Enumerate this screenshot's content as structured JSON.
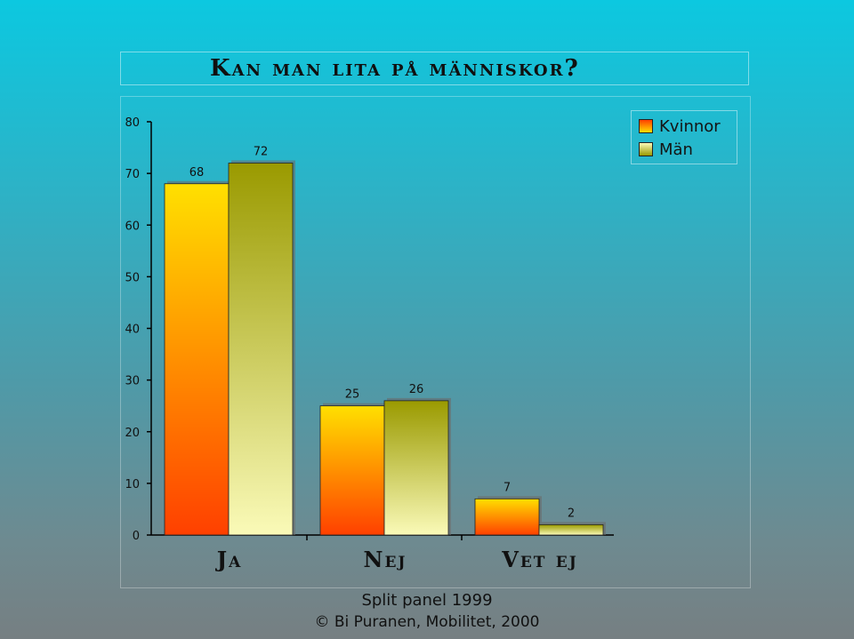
{
  "footer": {
    "subtitle": "Split panel 1999",
    "copyright": "© Bi Puranen, Mobilitet, 2000"
  },
  "chart_data": {
    "type": "bar",
    "title": "Kan man lita på människor?",
    "categories": [
      "Ja",
      "Nej",
      "Vet ej"
    ],
    "series": [
      {
        "name": "Kvinnor",
        "values": [
          68,
          25,
          7
        ]
      },
      {
        "name": "Män",
        "values": [
          72,
          26,
          2
        ]
      }
    ],
    "ylim": [
      0,
      80
    ],
    "yticks": [
      0,
      10,
      20,
      30,
      40,
      50,
      60,
      70,
      80
    ],
    "xlabel": "",
    "ylabel": "",
    "grid": false,
    "legend_position": "top-right",
    "colors": {
      "Kvinnor_top": "#ffe000",
      "Kvinnor_bottom": "#ff4000",
      "Män_top": "#9a9a00",
      "Män_bottom": "#fafab8"
    }
  }
}
